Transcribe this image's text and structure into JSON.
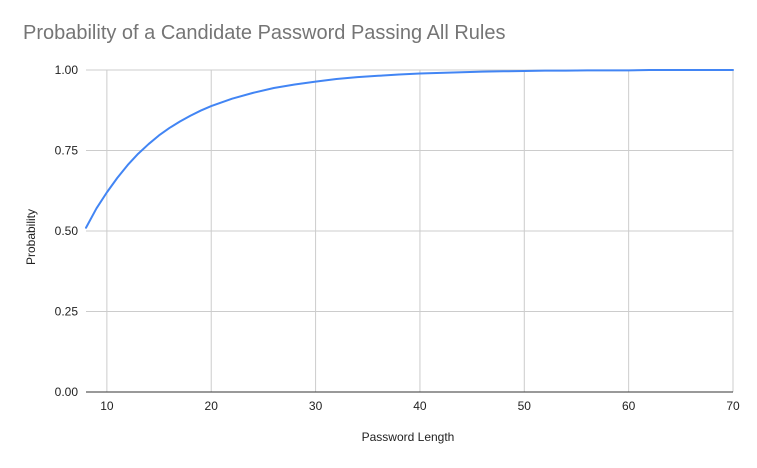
{
  "chart_data": {
    "type": "line",
    "title": "Probability of a Candidate Password Passing All Rules",
    "xlabel": "Password Length",
    "ylabel": "Probability",
    "xlim": [
      8,
      70
    ],
    "ylim": [
      0,
      1
    ],
    "x_ticks": [
      "10",
      "20",
      "30",
      "40",
      "50",
      "60",
      "70"
    ],
    "y_ticks": [
      "0.00",
      "0.25",
      "0.50",
      "0.75",
      "1.00"
    ],
    "grid": true,
    "legend": "none",
    "series": [
      {
        "color": "#4285f4",
        "x": [
          8,
          9,
          10,
          11,
          12,
          13,
          14,
          15,
          16,
          17,
          18,
          19,
          20,
          22,
          24,
          26,
          28,
          30,
          32,
          34,
          36,
          38,
          40,
          42,
          44,
          46,
          48,
          50,
          52,
          54,
          56,
          58,
          60,
          62,
          64,
          66,
          68,
          70
        ],
        "y": [
          0.51,
          0.57,
          0.62,
          0.665,
          0.705,
          0.74,
          0.77,
          0.797,
          0.82,
          0.84,
          0.858,
          0.874,
          0.888,
          0.911,
          0.929,
          0.944,
          0.955,
          0.964,
          0.972,
          0.978,
          0.982,
          0.986,
          0.989,
          0.991,
          0.993,
          0.995,
          0.996,
          0.997,
          0.998,
          0.998,
          0.999,
          0.999,
          0.999,
          1.0,
          1.0,
          1.0,
          1.0,
          1.0
        ]
      }
    ]
  }
}
